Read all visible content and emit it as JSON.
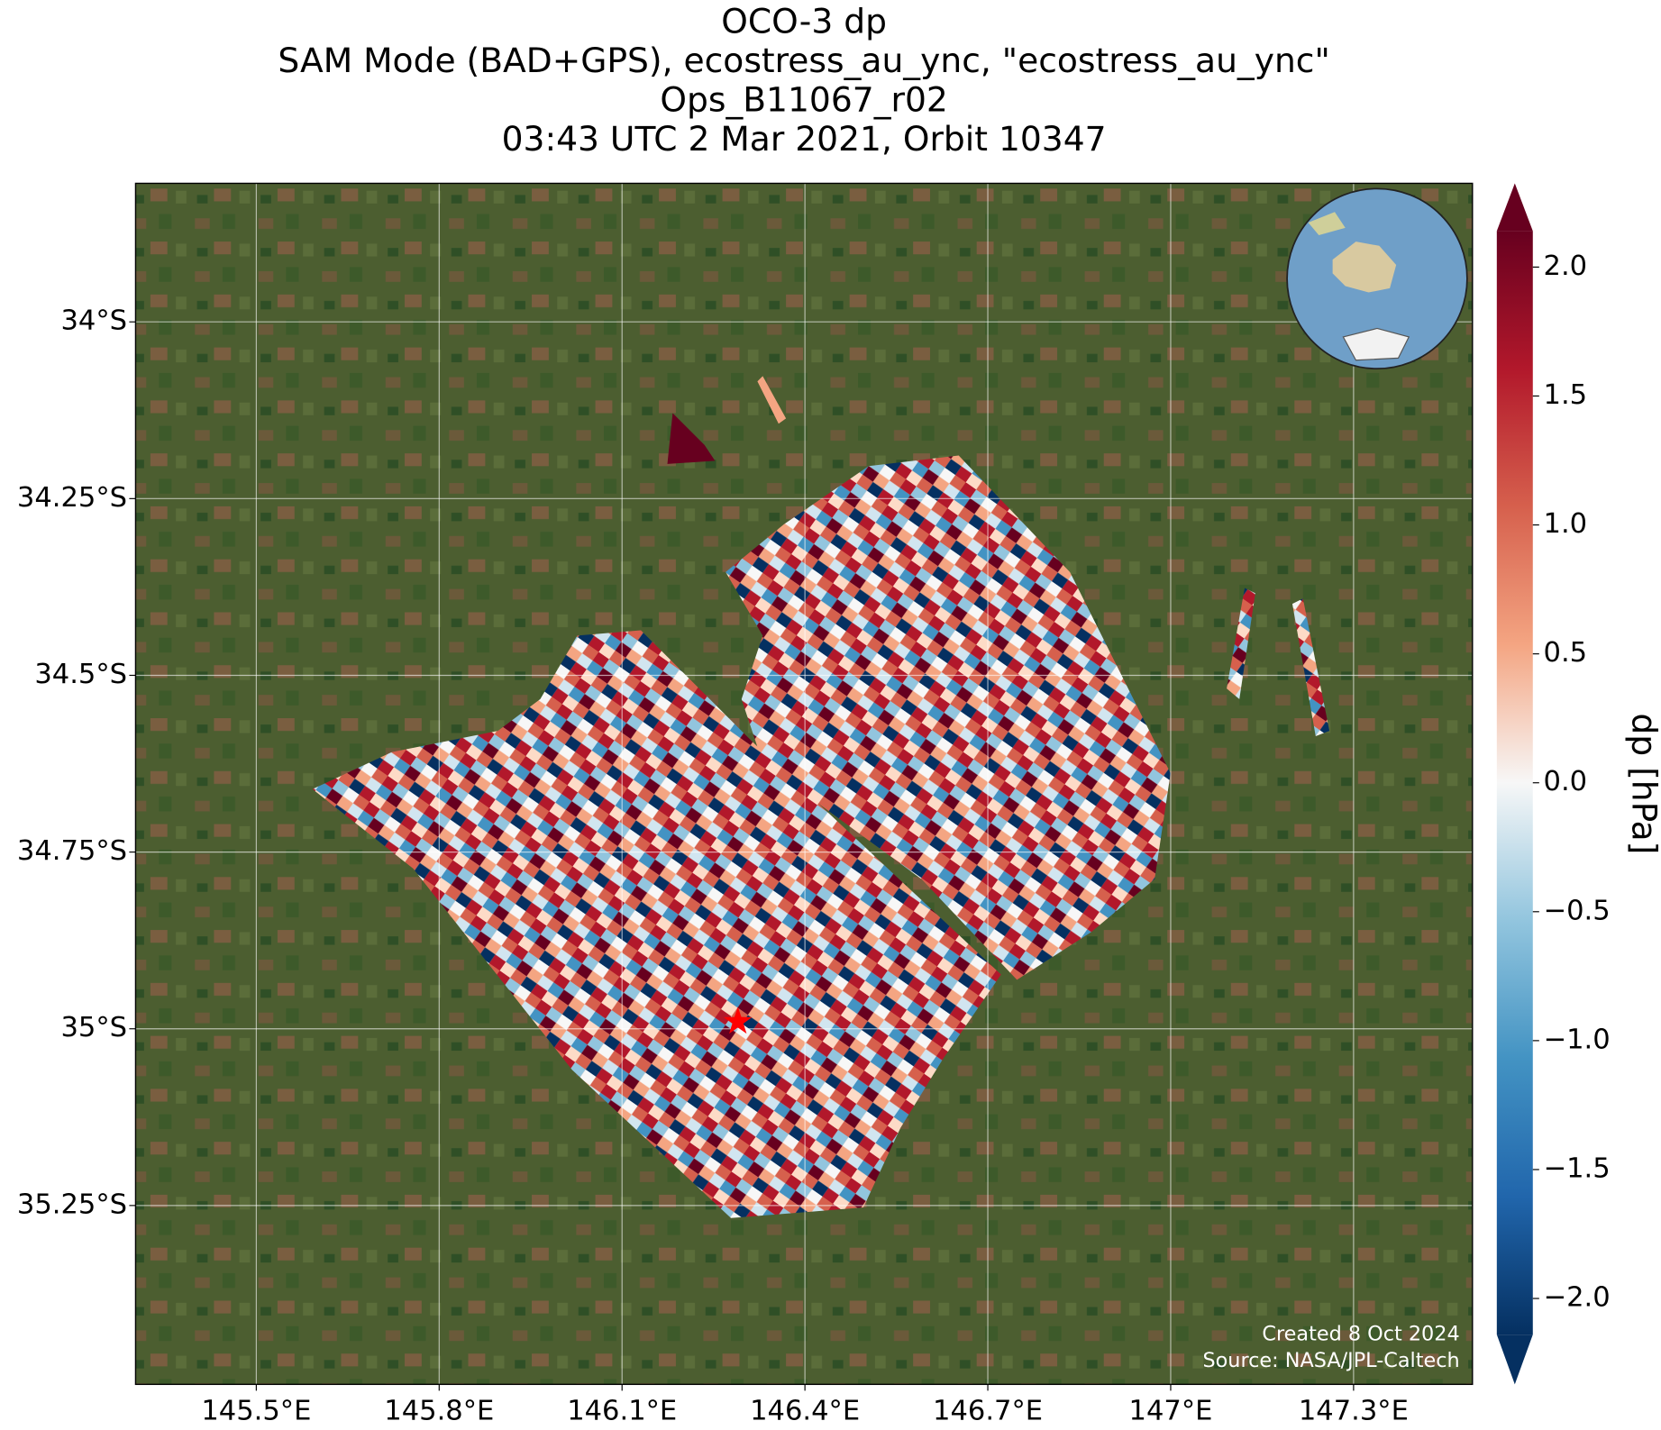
{
  "chart_data": {
    "type": "map",
    "title": [
      "OCO-3 dp",
      "SAM Mode (BAD+GPS), ecostress_au_ync, \"ecostress_au_ync\"",
      "Ops_B11067_r02",
      "03:43 UTC 2 Mar 2021, Orbit 10347"
    ],
    "xlim": [
      145.302,
      147.495
    ],
    "ylim": [
      -35.503,
      -33.804
    ],
    "xticks": [
      {
        "value": 145.5,
        "label": "145.5°E"
      },
      {
        "value": 145.8,
        "label": "145.8°E"
      },
      {
        "value": 146.1,
        "label": "146.1°E"
      },
      {
        "value": 146.4,
        "label": "146.4°E"
      },
      {
        "value": 146.7,
        "label": "146.7°E"
      },
      {
        "value": 147.0,
        "label": "147°E"
      },
      {
        "value": 147.3,
        "label": "147.3°E"
      }
    ],
    "yticks": [
      {
        "value": -34,
        "label": "34°S"
      },
      {
        "value": -34.25,
        "label": "34.25°S"
      },
      {
        "value": -34.5,
        "label": "34.5°S"
      },
      {
        "value": -34.75,
        "label": "34.75°S"
      },
      {
        "value": -35,
        "label": "35°S"
      },
      {
        "value": -35.25,
        "label": "35.25°S"
      }
    ],
    "grid": true,
    "target": {
      "lon": 146.29,
      "lat": -34.99,
      "color": "#ff0000"
    },
    "colorbar": {
      "label": "dp [hPa]",
      "lim": [
        -2.14,
        2.14
      ],
      "ticks": [
        {
          "value": -2.0,
          "label": "−2.0"
        },
        {
          "value": -1.5,
          "label": "−1.5"
        },
        {
          "value": -1.0,
          "label": "−1.0"
        },
        {
          "value": -0.5,
          "label": "−0.5"
        },
        {
          "value": 0.0,
          "label": "0.0"
        },
        {
          "value": 0.5,
          "label": "0.5"
        },
        {
          "value": 1.0,
          "label": "1.0"
        },
        {
          "value": 1.5,
          "label": "1.5"
        },
        {
          "value": 2.0,
          "label": "2.0"
        }
      ]
    },
    "annotations": [
      "Created 8 Oct 2024",
      "Source: NASA/JPL-Caltech"
    ]
  }
}
